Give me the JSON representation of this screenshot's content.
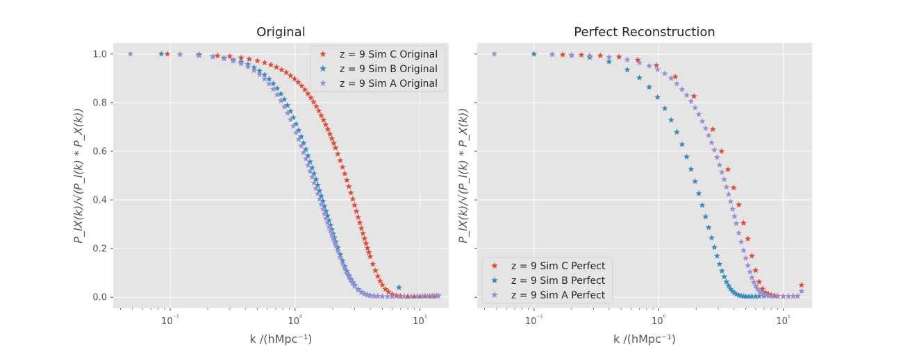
{
  "chart_data": [
    {
      "type": "scatter",
      "title": "Original",
      "xlabel": "k /(hMpc⁻¹)",
      "ylabel": "P_lX(k)/√(P_l(k) * P_X(k))",
      "xscale": "log",
      "xlim": [
        0.035,
        17
      ],
      "ylim": [
        -0.045,
        1.045
      ],
      "x_ticks": [
        0.1,
        1,
        10
      ],
      "x_tick_labels": [
        "10⁻¹",
        "10⁰",
        "10¹"
      ],
      "y_ticks": [
        0.0,
        0.2,
        0.4,
        0.6,
        0.8,
        1.0
      ],
      "y_tick_labels": [
        "0.0",
        "0.2",
        "0.4",
        "0.6",
        "0.8",
        "1.0"
      ],
      "grid": true,
      "legend_position": "top-right",
      "series": [
        {
          "name": "z = 9  Sim C Original",
          "color": "#e24a33",
          "x": [
            0.095,
            0.17,
            0.24,
            0.3,
            0.37,
            0.43,
            0.5,
            0.57,
            0.64,
            0.71,
            0.78,
            0.85,
            0.92,
            0.99,
            1.06,
            1.13,
            1.2,
            1.27,
            1.34,
            1.41,
            1.48,
            1.55,
            1.62,
            1.69,
            1.76,
            1.83,
            1.9,
            1.97,
            2.04,
            2.11,
            2.2,
            2.3,
            2.4,
            2.5,
            2.6,
            2.7,
            2.8,
            2.9,
            3.0,
            3.1,
            3.2,
            3.3,
            3.4,
            3.5,
            3.6,
            3.7,
            3.8,
            3.9,
            4.0,
            4.2,
            4.4,
            4.6,
            4.8,
            5.0,
            5.3,
            5.6,
            6.0,
            6.5,
            7.0,
            8.0,
            9.0,
            10.0,
            11.0,
            12.0,
            13.0,
            14.0
          ],
          "y": [
            1.0,
            0.998,
            0.993,
            0.99,
            0.984,
            0.979,
            0.972,
            0.964,
            0.955,
            0.946,
            0.935,
            0.924,
            0.911,
            0.898,
            0.884,
            0.869,
            0.853,
            0.837,
            0.82,
            0.802,
            0.784,
            0.766,
            0.747,
            0.728,
            0.709,
            0.69,
            0.671,
            0.652,
            0.633,
            0.614,
            0.589,
            0.562,
            0.535,
            0.508,
            0.481,
            0.455,
            0.429,
            0.403,
            0.378,
            0.353,
            0.329,
            0.306,
            0.283,
            0.262,
            0.241,
            0.221,
            0.202,
            0.184,
            0.167,
            0.136,
            0.109,
            0.086,
            0.066,
            0.05,
            0.033,
            0.022,
            0.012,
            0.006,
            0.004,
            0.003,
            0.003,
            0.003,
            0.004,
            0.004,
            0.004,
            0.006
          ]
        },
        {
          "name": "z = 9  Sim B Original",
          "color": "#348abd",
          "x": [
            0.085,
            0.12,
            0.17,
            0.22,
            0.27,
            0.32,
            0.37,
            0.42,
            0.47,
            0.52,
            0.57,
            0.62,
            0.67,
            0.72,
            0.77,
            0.82,
            0.87,
            0.92,
            0.97,
            1.02,
            1.07,
            1.12,
            1.17,
            1.22,
            1.27,
            1.32,
            1.37,
            1.42,
            1.47,
            1.52,
            1.57,
            1.62,
            1.67,
            1.72,
            1.77,
            1.82,
            1.87,
            1.92,
            1.97,
            2.02,
            2.07,
            2.12,
            2.2,
            2.3,
            2.4,
            2.5,
            2.6,
            2.7,
            2.8,
            2.9,
            3.0,
            3.2,
            3.4,
            3.6,
            3.8,
            4.0,
            4.3,
            4.6,
            5.0,
            5.5,
            6.0,
            6.8,
            7.5,
            8.5,
            9.5,
            10.5,
            11.5,
            12.5,
            13.5,
            14.0
          ],
          "y": [
            1.0,
            0.998,
            0.996,
            0.99,
            0.984,
            0.976,
            0.967,
            0.957,
            0.944,
            0.93,
            0.914,
            0.897,
            0.878,
            0.858,
            0.836,
            0.813,
            0.789,
            0.764,
            0.738,
            0.712,
            0.686,
            0.66,
            0.634,
            0.608,
            0.582,
            0.557,
            0.532,
            0.508,
            0.484,
            0.461,
            0.438,
            0.416,
            0.395,
            0.374,
            0.354,
            0.334,
            0.315,
            0.296,
            0.278,
            0.261,
            0.244,
            0.228,
            0.204,
            0.176,
            0.15,
            0.127,
            0.107,
            0.089,
            0.074,
            0.061,
            0.05,
            0.033,
            0.021,
            0.014,
            0.01,
            0.007,
            0.005,
            0.004,
            0.003,
            0.003,
            0.004,
            0.04,
            0.003,
            0.003,
            0.003,
            0.004,
            0.004,
            0.004,
            0.005,
            0.006
          ]
        },
        {
          "name": "z = 9  Sim A Original",
          "color": "#988ed5",
          "x": [
            0.048,
            0.12,
            0.17,
            0.22,
            0.27,
            0.32,
            0.37,
            0.42,
            0.47,
            0.52,
            0.57,
            0.62,
            0.67,
            0.72,
            0.77,
            0.82,
            0.87,
            0.92,
            0.97,
            1.02,
            1.07,
            1.12,
            1.17,
            1.22,
            1.27,
            1.32,
            1.37,
            1.42,
            1.47,
            1.52,
            1.57,
            1.62,
            1.67,
            1.72,
            1.77,
            1.82,
            1.87,
            1.92,
            1.97,
            2.02,
            2.07,
            2.12,
            2.2,
            2.3,
            2.4,
            2.5,
            2.6,
            2.7,
            2.8,
            2.9,
            3.0,
            3.2,
            3.4,
            3.6,
            3.8,
            4.0,
            4.3,
            4.6,
            5.0,
            5.5,
            6.0,
            6.8,
            7.5,
            8.5,
            9.5,
            10.5,
            11.5,
            12.5,
            13.5,
            14.0
          ],
          "y": [
            1.0,
            0.998,
            0.994,
            0.988,
            0.98,
            0.971,
            0.96,
            0.947,
            0.932,
            0.915,
            0.897,
            0.877,
            0.855,
            0.832,
            0.808,
            0.783,
            0.757,
            0.73,
            0.703,
            0.676,
            0.649,
            0.622,
            0.595,
            0.569,
            0.543,
            0.518,
            0.494,
            0.47,
            0.447,
            0.425,
            0.403,
            0.382,
            0.362,
            0.343,
            0.324,
            0.306,
            0.289,
            0.272,
            0.256,
            0.241,
            0.226,
            0.212,
            0.19,
            0.164,
            0.14,
            0.118,
            0.099,
            0.083,
            0.069,
            0.057,
            0.046,
            0.03,
            0.019,
            0.012,
            0.008,
            0.006,
            0.005,
            0.004,
            0.003,
            0.003,
            0.003,
            0.003,
            0.003,
            0.003,
            0.004,
            0.004,
            0.004,
            0.005,
            0.005,
            0.007
          ]
        }
      ]
    },
    {
      "type": "scatter",
      "title": "Perfect Reconstruction",
      "xlabel": "k /(hMpc⁻¹)",
      "ylabel": "P_lX(k)/√(P_l(k) * P_X(k))",
      "xscale": "log",
      "xlim": [
        0.035,
        17
      ],
      "ylim": [
        -0.045,
        1.045
      ],
      "x_ticks": [
        0.1,
        1,
        10
      ],
      "x_tick_labels": [
        "10⁻¹",
        "10⁰",
        "10¹"
      ],
      "y_ticks": [
        0.0,
        0.2,
        0.4,
        0.6,
        0.8,
        1.0
      ],
      "y_tick_labels": [
        "",
        "",
        "",
        "",
        "",
        ""
      ],
      "grid": true,
      "legend_position": "bottom-left",
      "series": [
        {
          "name": "z = 9  Sim C Perfect",
          "color": "#e24a33",
          "x": [
            0.1,
            0.17,
            0.24,
            0.34,
            0.48,
            0.68,
            0.96,
            1.36,
            1.92,
            2.72,
            3.2,
            3.6,
            4.0,
            4.4,
            4.8,
            5.2,
            5.6,
            6.0,
            6.4,
            6.8,
            7.2,
            7.6,
            8.0,
            8.5,
            9.0,
            10.0,
            11.0,
            12.0,
            13.0,
            14.0
          ],
          "y": [
            1.0,
            0.997,
            0.996,
            0.993,
            0.988,
            0.975,
            0.953,
            0.906,
            0.826,
            0.69,
            0.6,
            0.525,
            0.45,
            0.38,
            0.305,
            0.24,
            0.17,
            0.11,
            0.063,
            0.034,
            0.019,
            0.012,
            0.009,
            0.006,
            0.005,
            0.004,
            0.004,
            0.004,
            0.005,
            0.05
          ]
        },
        {
          "name": "z = 9  Sim B Perfect",
          "color": "#348abd",
          "x": [
            0.1,
            0.14,
            0.2,
            0.28,
            0.4,
            0.56,
            0.7,
            0.84,
            0.98,
            1.12,
            1.26,
            1.4,
            1.54,
            1.68,
            1.82,
            1.96,
            2.1,
            2.24,
            2.38,
            2.52,
            2.66,
            2.8,
            2.94,
            3.08,
            3.22,
            3.36,
            3.5,
            3.64,
            3.78,
            3.92,
            4.06,
            4.2,
            4.4,
            4.6,
            4.8,
            5.0,
            5.3,
            5.6,
            6.0,
            6.4,
            6.8,
            7.0
          ],
          "y": [
            1.0,
            0.998,
            0.994,
            0.986,
            0.968,
            0.935,
            0.902,
            0.864,
            0.822,
            0.776,
            0.728,
            0.679,
            0.628,
            0.577,
            0.526,
            0.476,
            0.426,
            0.378,
            0.331,
            0.287,
            0.244,
            0.205,
            0.169,
            0.136,
            0.108,
            0.084,
            0.063,
            0.047,
            0.034,
            0.024,
            0.017,
            0.012,
            0.008,
            0.005,
            0.004,
            0.003,
            0.003,
            0.003,
            0.003,
            0.004,
            0.02,
            0.005
          ]
        },
        {
          "name": "z = 9  Sim A Perfect",
          "color": "#988ed5",
          "x": [
            0.048,
            0.14,
            0.2,
            0.28,
            0.4,
            0.56,
            0.7,
            0.84,
            0.98,
            1.12,
            1.26,
            1.4,
            1.54,
            1.68,
            1.82,
            1.96,
            2.1,
            2.24,
            2.38,
            2.52,
            2.66,
            2.8,
            2.94,
            3.08,
            3.22,
            3.36,
            3.5,
            3.64,
            3.78,
            3.92,
            4.06,
            4.2,
            4.4,
            4.6,
            4.8,
            5.0,
            5.2,
            5.4,
            5.6,
            5.8,
            6.0,
            6.2,
            6.4,
            6.6,
            6.8,
            7.0,
            7.3,
            7.7,
            8.2,
            9.0,
            10.0,
            11.0,
            12.0,
            13.0,
            14.0
          ],
          "y": [
            1.0,
            0.998,
            0.996,
            0.993,
            0.987,
            0.976,
            0.964,
            0.951,
            0.936,
            0.919,
            0.9,
            0.878,
            0.854,
            0.83,
            0.805,
            0.779,
            0.752,
            0.723,
            0.694,
            0.665,
            0.635,
            0.605,
            0.575,
            0.544,
            0.514,
            0.484,
            0.453,
            0.423,
            0.393,
            0.362,
            0.332,
            0.303,
            0.264,
            0.227,
            0.192,
            0.16,
            0.13,
            0.104,
            0.081,
            0.062,
            0.047,
            0.035,
            0.026,
            0.019,
            0.014,
            0.01,
            0.007,
            0.005,
            0.004,
            0.003,
            0.003,
            0.003,
            0.004,
            0.004,
            0.025
          ]
        }
      ]
    }
  ]
}
